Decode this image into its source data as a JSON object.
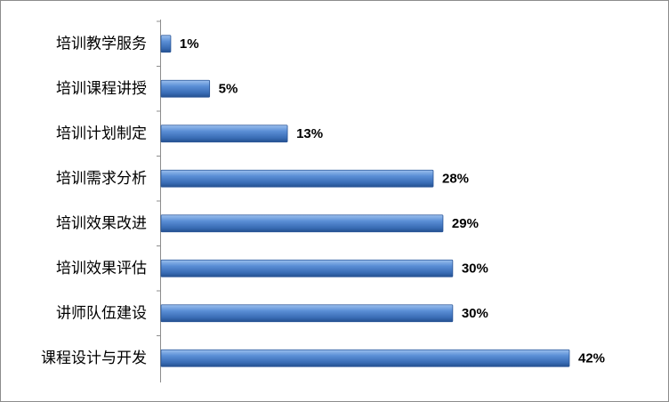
{
  "chart_data": {
    "type": "bar",
    "orientation": "horizontal",
    "categories": [
      "培训教学服务",
      "培训课程讲授",
      "培训计划制定",
      "培训需求分析",
      "培训效果改进",
      "培训效果评估",
      "讲师队伍建设",
      "课程设计与开发"
    ],
    "values": [
      1,
      5,
      13,
      28,
      29,
      30,
      30,
      42
    ],
    "value_labels": [
      "1%",
      "5%",
      "13%",
      "28%",
      "29%",
      "30%",
      "30%",
      "42%"
    ],
    "color": "#4a7fc6"
  }
}
